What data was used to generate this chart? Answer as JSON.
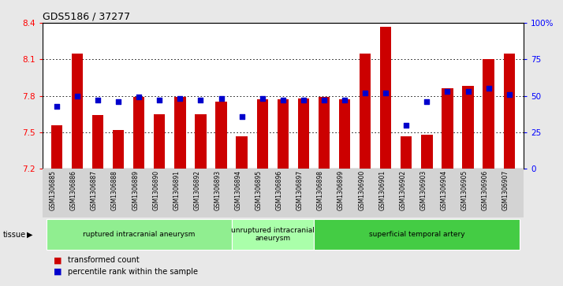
{
  "title": "GDS5186 / 37277",
  "samples": [
    "GSM1306885",
    "GSM1306886",
    "GSM1306887",
    "GSM1306888",
    "GSM1306889",
    "GSM1306890",
    "GSM1306891",
    "GSM1306892",
    "GSM1306893",
    "GSM1306894",
    "GSM1306895",
    "GSM1306896",
    "GSM1306897",
    "GSM1306898",
    "GSM1306899",
    "GSM1306900",
    "GSM1306901",
    "GSM1306902",
    "GSM1306903",
    "GSM1306904",
    "GSM1306905",
    "GSM1306906",
    "GSM1306907"
  ],
  "bar_values": [
    7.56,
    8.15,
    7.64,
    7.52,
    7.79,
    7.65,
    7.79,
    7.65,
    7.75,
    7.47,
    7.77,
    7.77,
    7.78,
    7.79,
    7.77,
    8.15,
    8.37,
    7.47,
    7.48,
    7.86,
    7.88,
    8.1,
    8.15
  ],
  "percentile_values": [
    43,
    50,
    47,
    46,
    49,
    47,
    48,
    47,
    48,
    36,
    48,
    47,
    47,
    47,
    47,
    52,
    52,
    30,
    46,
    53,
    53,
    55,
    51
  ],
  "ylim_left": [
    7.2,
    8.4
  ],
  "ylim_right": [
    0,
    100
  ],
  "yticks_left": [
    7.2,
    7.5,
    7.8,
    8.1,
    8.4
  ],
  "yticks_right": [
    0,
    25,
    50,
    75,
    100
  ],
  "bar_color": "#CC0000",
  "dot_color": "#0000CC",
  "fig_bg_color": "#E8E8E8",
  "plot_bg_color": "#FFFFFF",
  "xticklabels_bg": "#D3D3D3",
  "groups": [
    {
      "label": "ruptured intracranial aneurysm",
      "start": 0,
      "end": 9,
      "color": "#90EE90"
    },
    {
      "label": "unruptured intracranial\naneurysm",
      "start": 9,
      "end": 13,
      "color": "#AAFFAA"
    },
    {
      "label": "superficial temporal artery",
      "start": 13,
      "end": 23,
      "color": "#44CC44"
    }
  ],
  "legend_bar_label": "transformed count",
  "legend_dot_label": "percentile rank within the sample",
  "tissue_label": "tissue"
}
